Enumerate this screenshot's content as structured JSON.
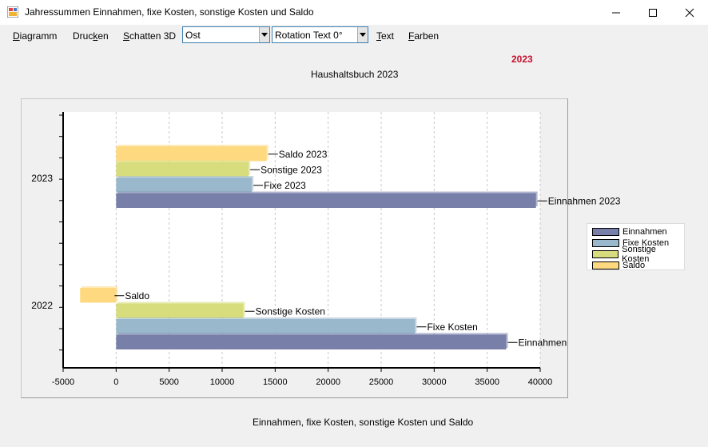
{
  "window": {
    "title": "Jahressummen Einnahmen, fixe Kosten, sonstige Kosten und Saldo",
    "icons": [
      "app-icon",
      "minimize-icon",
      "maximize-icon",
      "close-icon"
    ]
  },
  "menu": {
    "diagramm": "Diagramm",
    "drucken": "Drucken",
    "schatten": "Schatten 3D",
    "text": "Text",
    "farben": "Farben"
  },
  "toolbar": {
    "direction_select": "Ost",
    "rotation_select": "Rotation Text 0°"
  },
  "header": {
    "year": "2023",
    "chart_title": "Haushaltsbuch   2023",
    "year_color": "#c8102e"
  },
  "footer_text": "Einnahmen, fixe Kosten, sonstige Kosten und Saldo",
  "chart_data": {
    "type": "bar",
    "orientation": "horizontal",
    "categories": [
      "2022",
      "2023"
    ],
    "xlim": [
      -5000,
      40000
    ],
    "xticks": [
      "-5000",
      "0",
      "5000",
      "10000",
      "15000",
      "20000",
      "25000",
      "30000",
      "35000",
      "40000"
    ],
    "grid": true,
    "legend_position": "right",
    "series": [
      {
        "name": "Einnahmen",
        "color": "#7880aa",
        "values": [
          36800,
          39600
        ],
        "labels": [
          "Einnahmen",
          "Einnahmen 2023"
        ]
      },
      {
        "name": "Fixe Kosten",
        "color": "#9ab8cc",
        "values": [
          28200,
          12800
        ],
        "labels": [
          "Fixe Kosten",
          "Fixe  2023"
        ]
      },
      {
        "name": "Sonstige Kosten",
        "color": "#d7dc7c",
        "values": [
          12000,
          12500
        ],
        "labels": [
          "Sonstige Kosten",
          "Sonstige 2023"
        ]
      },
      {
        "name": "Saldo",
        "color": "#ffd980",
        "values": [
          -3400,
          14200
        ],
        "labels": [
          "Saldo",
          "Saldo 2023"
        ]
      }
    ]
  }
}
